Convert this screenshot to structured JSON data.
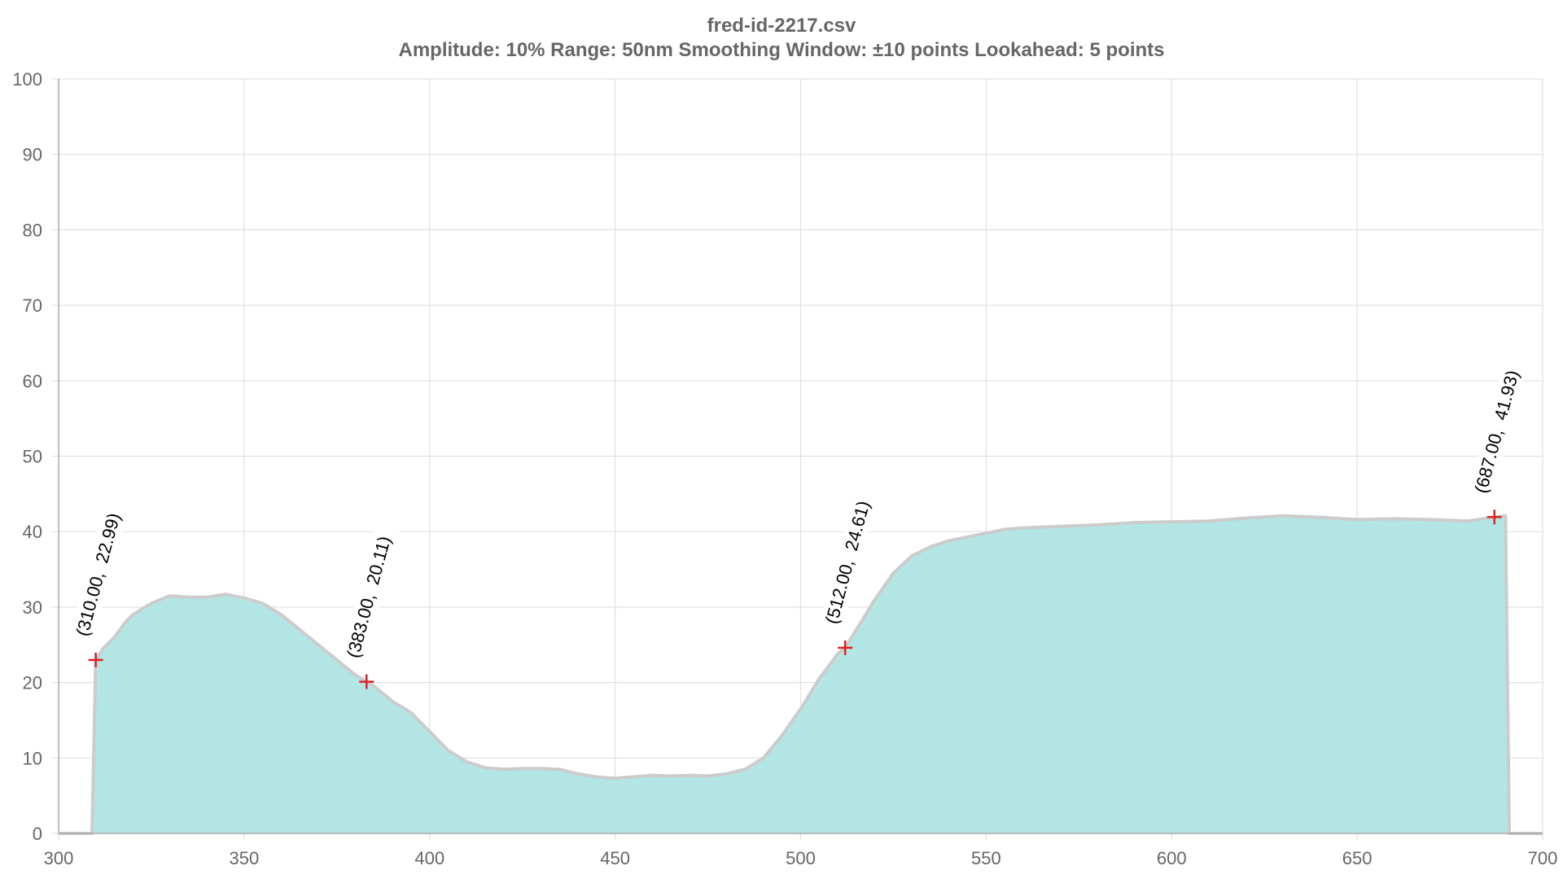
{
  "chart_data": {
    "type": "area",
    "title": "fred-id-2217.csv",
    "subtitle": "Amplitude: 10%   Range: 50nm   Smoothing Window: ±10 points   Lookahead: 5 points",
    "xlabel": "",
    "ylabel": "",
    "xlim": [
      300,
      700
    ],
    "ylim": [
      0,
      100
    ],
    "x_ticks": [
      300,
      350,
      400,
      450,
      500,
      550,
      600,
      650,
      700
    ],
    "y_ticks": [
      0,
      10,
      20,
      30,
      40,
      50,
      60,
      70,
      80,
      90,
      100
    ],
    "grid": true,
    "colors": {
      "fill": "#b3e5e5",
      "line": "#cccccc",
      "grid": "#e0e0e0",
      "marker": "#dd2222",
      "axis_text": "#666666"
    },
    "series": [
      {
        "x": [
          300,
          309,
          310,
          312,
          315,
          318,
          320,
          325,
          330,
          335,
          340,
          345,
          350,
          355,
          360,
          365,
          370,
          375,
          380,
          383,
          385,
          390,
          395,
          400,
          405,
          410,
          415,
          420,
          425,
          430,
          435,
          440,
          445,
          450,
          455,
          460,
          465,
          470,
          475,
          480,
          485,
          490,
          495,
          500,
          505,
          510,
          512,
          515,
          520,
          525,
          530,
          535,
          540,
          545,
          550,
          555,
          560,
          570,
          580,
          590,
          600,
          610,
          620,
          630,
          640,
          650,
          660,
          670,
          680,
          687,
          690,
          691,
          700
        ],
        "y": [
          0,
          0,
          22.99,
          24.5,
          26,
          28,
          29,
          30.5,
          31.5,
          31.3,
          31.3,
          31.7,
          31.2,
          30.5,
          29,
          27,
          25,
          23,
          21,
          20.11,
          19.5,
          17.5,
          16,
          13.5,
          11,
          9.5,
          8.7,
          8.5,
          8.6,
          8.6,
          8.5,
          7.9,
          7.5,
          7.3,
          7.5,
          7.7,
          7.6,
          7.7,
          7.6,
          7.9,
          8.5,
          10,
          13,
          16.5,
          20.5,
          23.8,
          24.61,
          27,
          31,
          34.5,
          36.8,
          38,
          38.8,
          39.3,
          39.8,
          40.3,
          40.5,
          40.7,
          40.9,
          41.2,
          41.3,
          41.4,
          41.8,
          42.1,
          41.9,
          41.6,
          41.7,
          41.6,
          41.4,
          41.93,
          42.1,
          0,
          0
        ]
      }
    ],
    "peaks": [
      {
        "x": 310,
        "y": 22.99,
        "label": "(310.00,  22.99)"
      },
      {
        "x": 383,
        "y": 20.11,
        "label": "(383.00,  20.11)"
      },
      {
        "x": 512,
        "y": 24.61,
        "label": "(512.00,  24.61)"
      },
      {
        "x": 687,
        "y": 41.93,
        "label": "(687.00,  41.93)"
      }
    ]
  }
}
